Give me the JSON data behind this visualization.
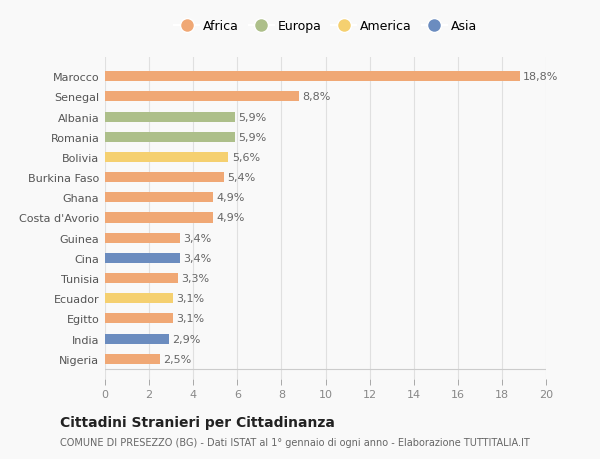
{
  "countries": [
    "Nigeria",
    "India",
    "Egitto",
    "Ecuador",
    "Tunisia",
    "Cina",
    "Guinea",
    "Costa d'Avorio",
    "Ghana",
    "Burkina Faso",
    "Bolivia",
    "Romania",
    "Albania",
    "Senegal",
    "Marocco"
  ],
  "values": [
    2.5,
    2.9,
    3.1,
    3.1,
    3.3,
    3.4,
    3.4,
    4.9,
    4.9,
    5.4,
    5.6,
    5.9,
    5.9,
    8.8,
    18.8
  ],
  "labels": [
    "2,5%",
    "2,9%",
    "3,1%",
    "3,1%",
    "3,3%",
    "3,4%",
    "3,4%",
    "4,9%",
    "4,9%",
    "5,4%",
    "5,6%",
    "5,9%",
    "5,9%",
    "8,8%",
    "18,8%"
  ],
  "continents": [
    "Africa",
    "Asia",
    "Africa",
    "America",
    "Africa",
    "Asia",
    "Africa",
    "Africa",
    "Africa",
    "Africa",
    "America",
    "Europa",
    "Europa",
    "Africa",
    "Africa"
  ],
  "colors": {
    "Africa": "#F0A875",
    "Europa": "#ADBF8A",
    "America": "#F5D070",
    "Asia": "#6B8CBF"
  },
  "legend_order": [
    "Africa",
    "Europa",
    "America",
    "Asia"
  ],
  "title": "Cittadini Stranieri per Cittadinanza",
  "subtitle": "COMUNE DI PRESEZZO (BG) - Dati ISTAT al 1° gennaio di ogni anno - Elaborazione TUTTITALIA.IT",
  "xlim": [
    0,
    20
  ],
  "xticks": [
    0,
    2,
    4,
    6,
    8,
    10,
    12,
    14,
    16,
    18,
    20
  ],
  "background_color": "#f9f9f9",
  "grid_color": "#e0e0e0"
}
